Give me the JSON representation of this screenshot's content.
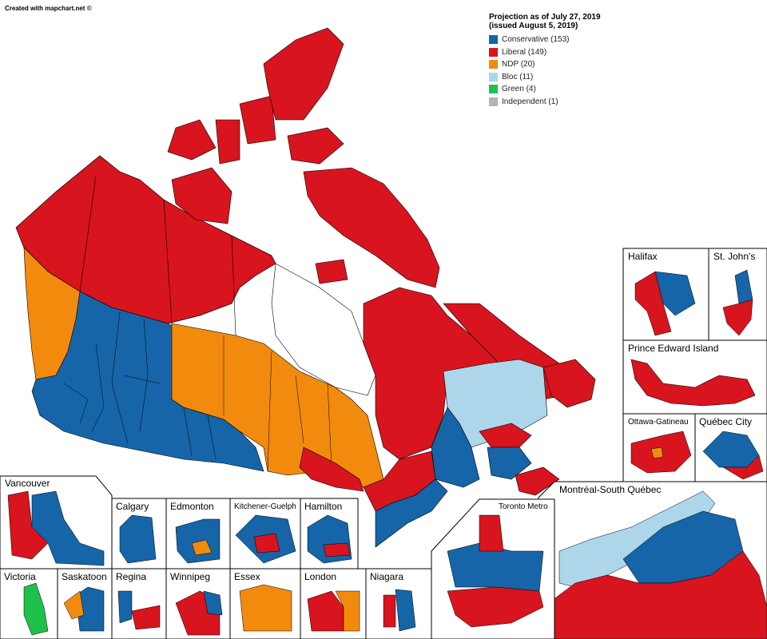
{
  "credit": "Created with mapchart.net ©",
  "legend": {
    "title_line1": "Projection as of July 27, 2019",
    "title_line2": "(issued August 5, 2019)",
    "items": [
      {
        "label": "Conservative (153)",
        "color": "#1565a8"
      },
      {
        "label": "Liberal (149)",
        "color": "#d8141e"
      },
      {
        "label": "NDP (20)",
        "color": "#f28a0e"
      },
      {
        "label": "Bloc (11)",
        "color": "#aed6ea"
      },
      {
        "label": "Green (4)",
        "color": "#1fc14a"
      },
      {
        "label": "Independent (1)",
        "color": "#b4b4b4"
      }
    ]
  },
  "insets": {
    "halifax": "Halifax",
    "st_johns": "St. John's",
    "pei": "Prince Edward Island",
    "ottawa": "Ottawa-Gatineau",
    "quebec_city": "Québec City",
    "montreal": "Montréal-South Québec",
    "toronto": "Toronto Metro",
    "vancouver": "Vancouver",
    "calgary": "Calgary",
    "edmonton": "Edmonton",
    "kitchener": "Kitchener-Guelph",
    "hamilton": "Hamilton",
    "victoria": "Victoria",
    "saskatoon": "Saskatoon",
    "regina": "Regina",
    "winnipeg": "Winnipeg",
    "essex": "Essex",
    "london": "London",
    "niagara": "Niagara"
  }
}
